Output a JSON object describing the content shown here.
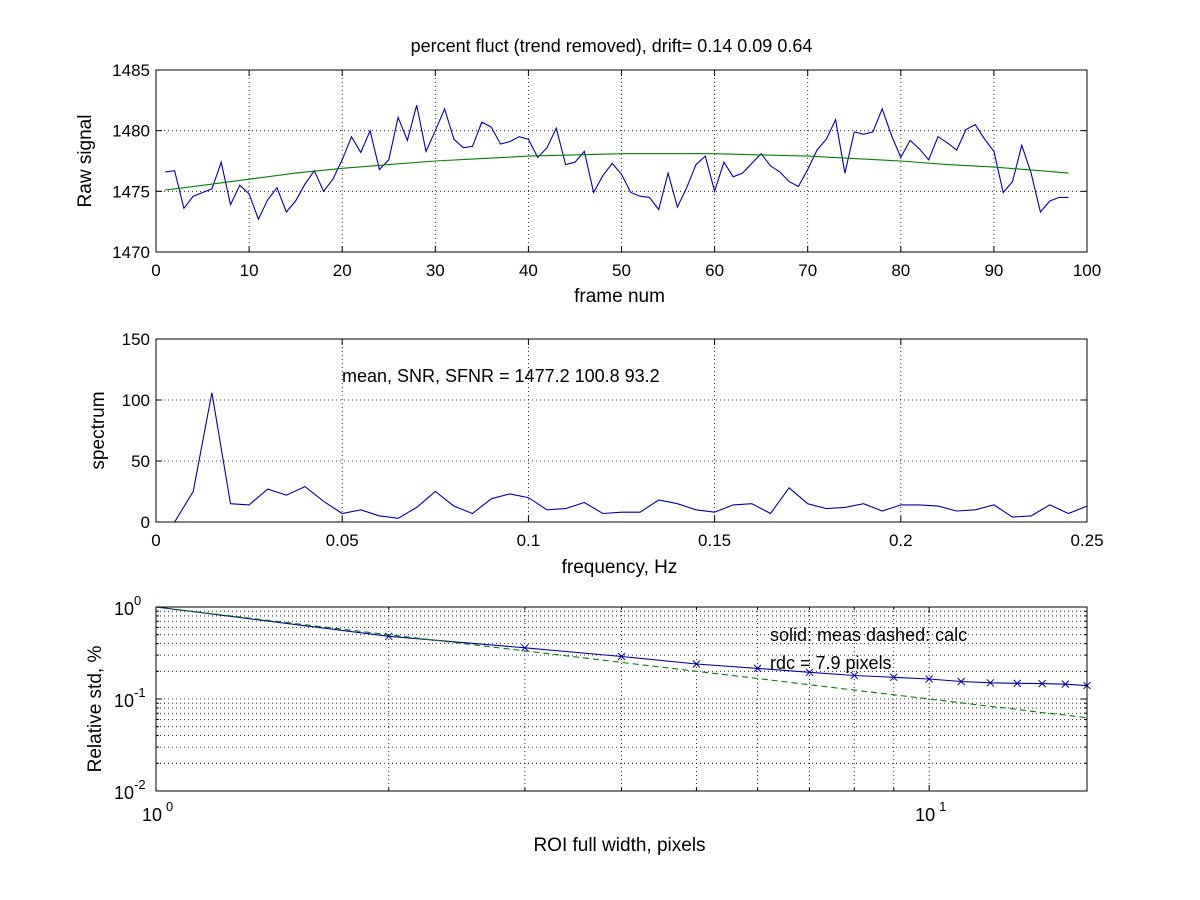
{
  "chart_data": [
    {
      "type": "line",
      "title": "percent fluct (trend removed), drift=  0.14  0.09  0.64",
      "xlabel": "frame num",
      "ylabel": "Raw signal",
      "xlim": [
        0,
        100
      ],
      "ylim": [
        1470,
        1485
      ],
      "xticks": [
        0,
        10,
        20,
        30,
        40,
        50,
        60,
        70,
        80,
        90,
        100
      ],
      "yticks": [
        1470,
        1475,
        1480,
        1485
      ],
      "grid": true,
      "series": [
        {
          "color": "#0000aa",
          "style": "solid",
          "x": [
            1,
            2,
            3,
            4,
            5,
            6,
            7,
            8,
            9,
            10,
            11,
            12,
            13,
            14,
            15,
            16,
            17,
            18,
            19,
            20,
            21,
            22,
            23,
            24,
            25,
            26,
            27,
            28,
            29,
            30,
            31,
            32,
            33,
            34,
            35,
            36,
            37,
            38,
            39,
            40,
            41,
            42,
            43,
            44,
            45,
            46,
            47,
            48,
            49,
            50,
            51,
            52,
            53,
            54,
            55,
            56,
            57,
            58,
            59,
            60,
            61,
            62,
            63,
            64,
            65,
            66,
            67,
            68,
            69,
            70,
            71,
            72,
            73,
            74,
            75,
            76,
            77,
            78,
            79,
            80,
            81,
            82,
            83,
            84,
            85,
            86,
            87,
            88,
            89,
            90,
            91,
            92,
            93,
            94,
            95,
            96,
            97,
            98
          ],
          "y": [
            1476.6,
            1476.7,
            1473.6,
            1474.6,
            1474.9,
            1475.2,
            1477.4,
            1473.9,
            1475.5,
            1474.8,
            1472.7,
            1474.3,
            1475.3,
            1473.3,
            1474.2,
            1475.6,
            1476.7,
            1475.0,
            1476.0,
            1477.6,
            1479.5,
            1478.2,
            1480.0,
            1476.8,
            1477.6,
            1481.1,
            1479.2,
            1482.1,
            1478.3,
            1480.0,
            1481.8,
            1479.3,
            1478.6,
            1478.7,
            1480.7,
            1480.3,
            1478.9,
            1479.1,
            1479.5,
            1479.3,
            1477.8,
            1478.6,
            1480.2,
            1477.2,
            1477.4,
            1478.3,
            1474.9,
            1476.3,
            1477.3,
            1476.4,
            1474.9,
            1474.6,
            1474.5,
            1473.5,
            1476.5,
            1473.7,
            1475.3,
            1477.2,
            1477.9,
            1475.0,
            1477.4,
            1476.2,
            1476.5,
            1477.3,
            1478.1,
            1477.1,
            1476.6,
            1475.8,
            1475.4,
            1476.8,
            1478.4,
            1479.3,
            1480.9,
            1476.5,
            1479.9,
            1479.7,
            1479.9,
            1481.8,
            1479.6,
            1477.8,
            1479.2,
            1478.5,
            1477.6,
            1479.5,
            1479.0,
            1478.4,
            1480.1,
            1480.5,
            1479.3,
            1478.3,
            1474.9,
            1475.8,
            1478.8,
            1476.5,
            1473.3,
            1474.2,
            1474.5,
            1474.5
          ]
        },
        {
          "color": "#008000",
          "style": "solid",
          "x": [
            1,
            5,
            10,
            15,
            20,
            25,
            30,
            35,
            40,
            45,
            50,
            55,
            60,
            65,
            70,
            75,
            80,
            85,
            90,
            95,
            98
          ],
          "y": [
            1475.1,
            1475.5,
            1476.0,
            1476.5,
            1476.9,
            1477.2,
            1477.5,
            1477.7,
            1477.9,
            1478.0,
            1478.1,
            1478.1,
            1478.1,
            1478.0,
            1477.9,
            1477.7,
            1477.5,
            1477.2,
            1477.0,
            1476.7,
            1476.5
          ]
        }
      ]
    },
    {
      "type": "line",
      "xlabel": "frequency, Hz",
      "ylabel": "spectrum",
      "xlim": [
        0,
        0.25
      ],
      "ylim": [
        0,
        150
      ],
      "xticks": [
        0,
        0.05,
        0.1,
        0.15,
        0.2,
        0.25
      ],
      "xtick_labels": [
        "0",
        "0.05",
        "0.1",
        "0.15",
        "0.2",
        "0.25"
      ],
      "yticks": [
        0,
        50,
        100,
        150
      ],
      "grid": true,
      "annotation": "mean, SNR, SFNR = 1477.2  100.8   93.2",
      "series": [
        {
          "color": "#0000aa",
          "style": "solid",
          "x": [
            0.005,
            0.01,
            0.015,
            0.02,
            0.025,
            0.03,
            0.035,
            0.04,
            0.045,
            0.05,
            0.055,
            0.06,
            0.065,
            0.07,
            0.075,
            0.08,
            0.085,
            0.09,
            0.095,
            0.1,
            0.105,
            0.11,
            0.115,
            0.12,
            0.125,
            0.13,
            0.135,
            0.14,
            0.145,
            0.15,
            0.155,
            0.16,
            0.165,
            0.17,
            0.175,
            0.18,
            0.185,
            0.19,
            0.195,
            0.2,
            0.205,
            0.21,
            0.215,
            0.22,
            0.225,
            0.23,
            0.235,
            0.24,
            0.245,
            0.25
          ],
          "y": [
            0,
            25,
            106,
            15,
            14,
            27,
            22,
            29,
            17,
            7,
            10,
            5,
            3,
            12,
            25,
            13,
            7,
            19,
            23,
            20,
            10,
            11,
            16,
            7,
            8,
            8,
            18,
            15,
            10,
            8,
            14,
            15,
            7,
            28,
            15,
            11,
            12,
            15,
            9,
            14,
            14,
            13,
            9,
            10,
            14,
            4,
            5,
            14,
            7,
            13
          ]
        }
      ]
    },
    {
      "type": "line",
      "xscale": "log",
      "yscale": "log",
      "xlabel": "ROI full width, pixels",
      "ylabel": "Relative std, %",
      "xlim": [
        1,
        16
      ],
      "ylim": [
        0.01,
        1
      ],
      "xtick_base_labels": [
        "10",
        "10"
      ],
      "xtick_exponents": [
        "0",
        "1"
      ],
      "ytick_base_labels": [
        "10",
        "10",
        "10"
      ],
      "ytick_exponents": [
        "-2",
        "-1",
        "0"
      ],
      "grid": true,
      "annotations": [
        "solid: meas   dashed: calc",
        "rdc = 7.9 pixels"
      ],
      "series": [
        {
          "color": "#0000aa",
          "style": "solid",
          "marker": "x",
          "x": [
            1,
            2,
            3,
            4,
            5,
            6,
            7,
            8,
            9,
            10,
            11,
            12,
            13,
            14,
            15,
            16
          ],
          "y": [
            1.0,
            0.48,
            0.36,
            0.29,
            0.24,
            0.215,
            0.195,
            0.18,
            0.172,
            0.165,
            0.155,
            0.15,
            0.148,
            0.147,
            0.145,
            0.14
          ]
        },
        {
          "color": "#008000",
          "style": "dashed",
          "x": [
            1,
            2,
            3,
            4,
            5,
            6,
            7,
            8,
            9,
            10,
            11,
            12,
            13,
            14,
            15,
            16
          ],
          "y": [
            1.0,
            0.5,
            0.333,
            0.25,
            0.2,
            0.167,
            0.143,
            0.125,
            0.111,
            0.1,
            0.091,
            0.083,
            0.077,
            0.071,
            0.067,
            0.0625
          ]
        }
      ]
    }
  ]
}
